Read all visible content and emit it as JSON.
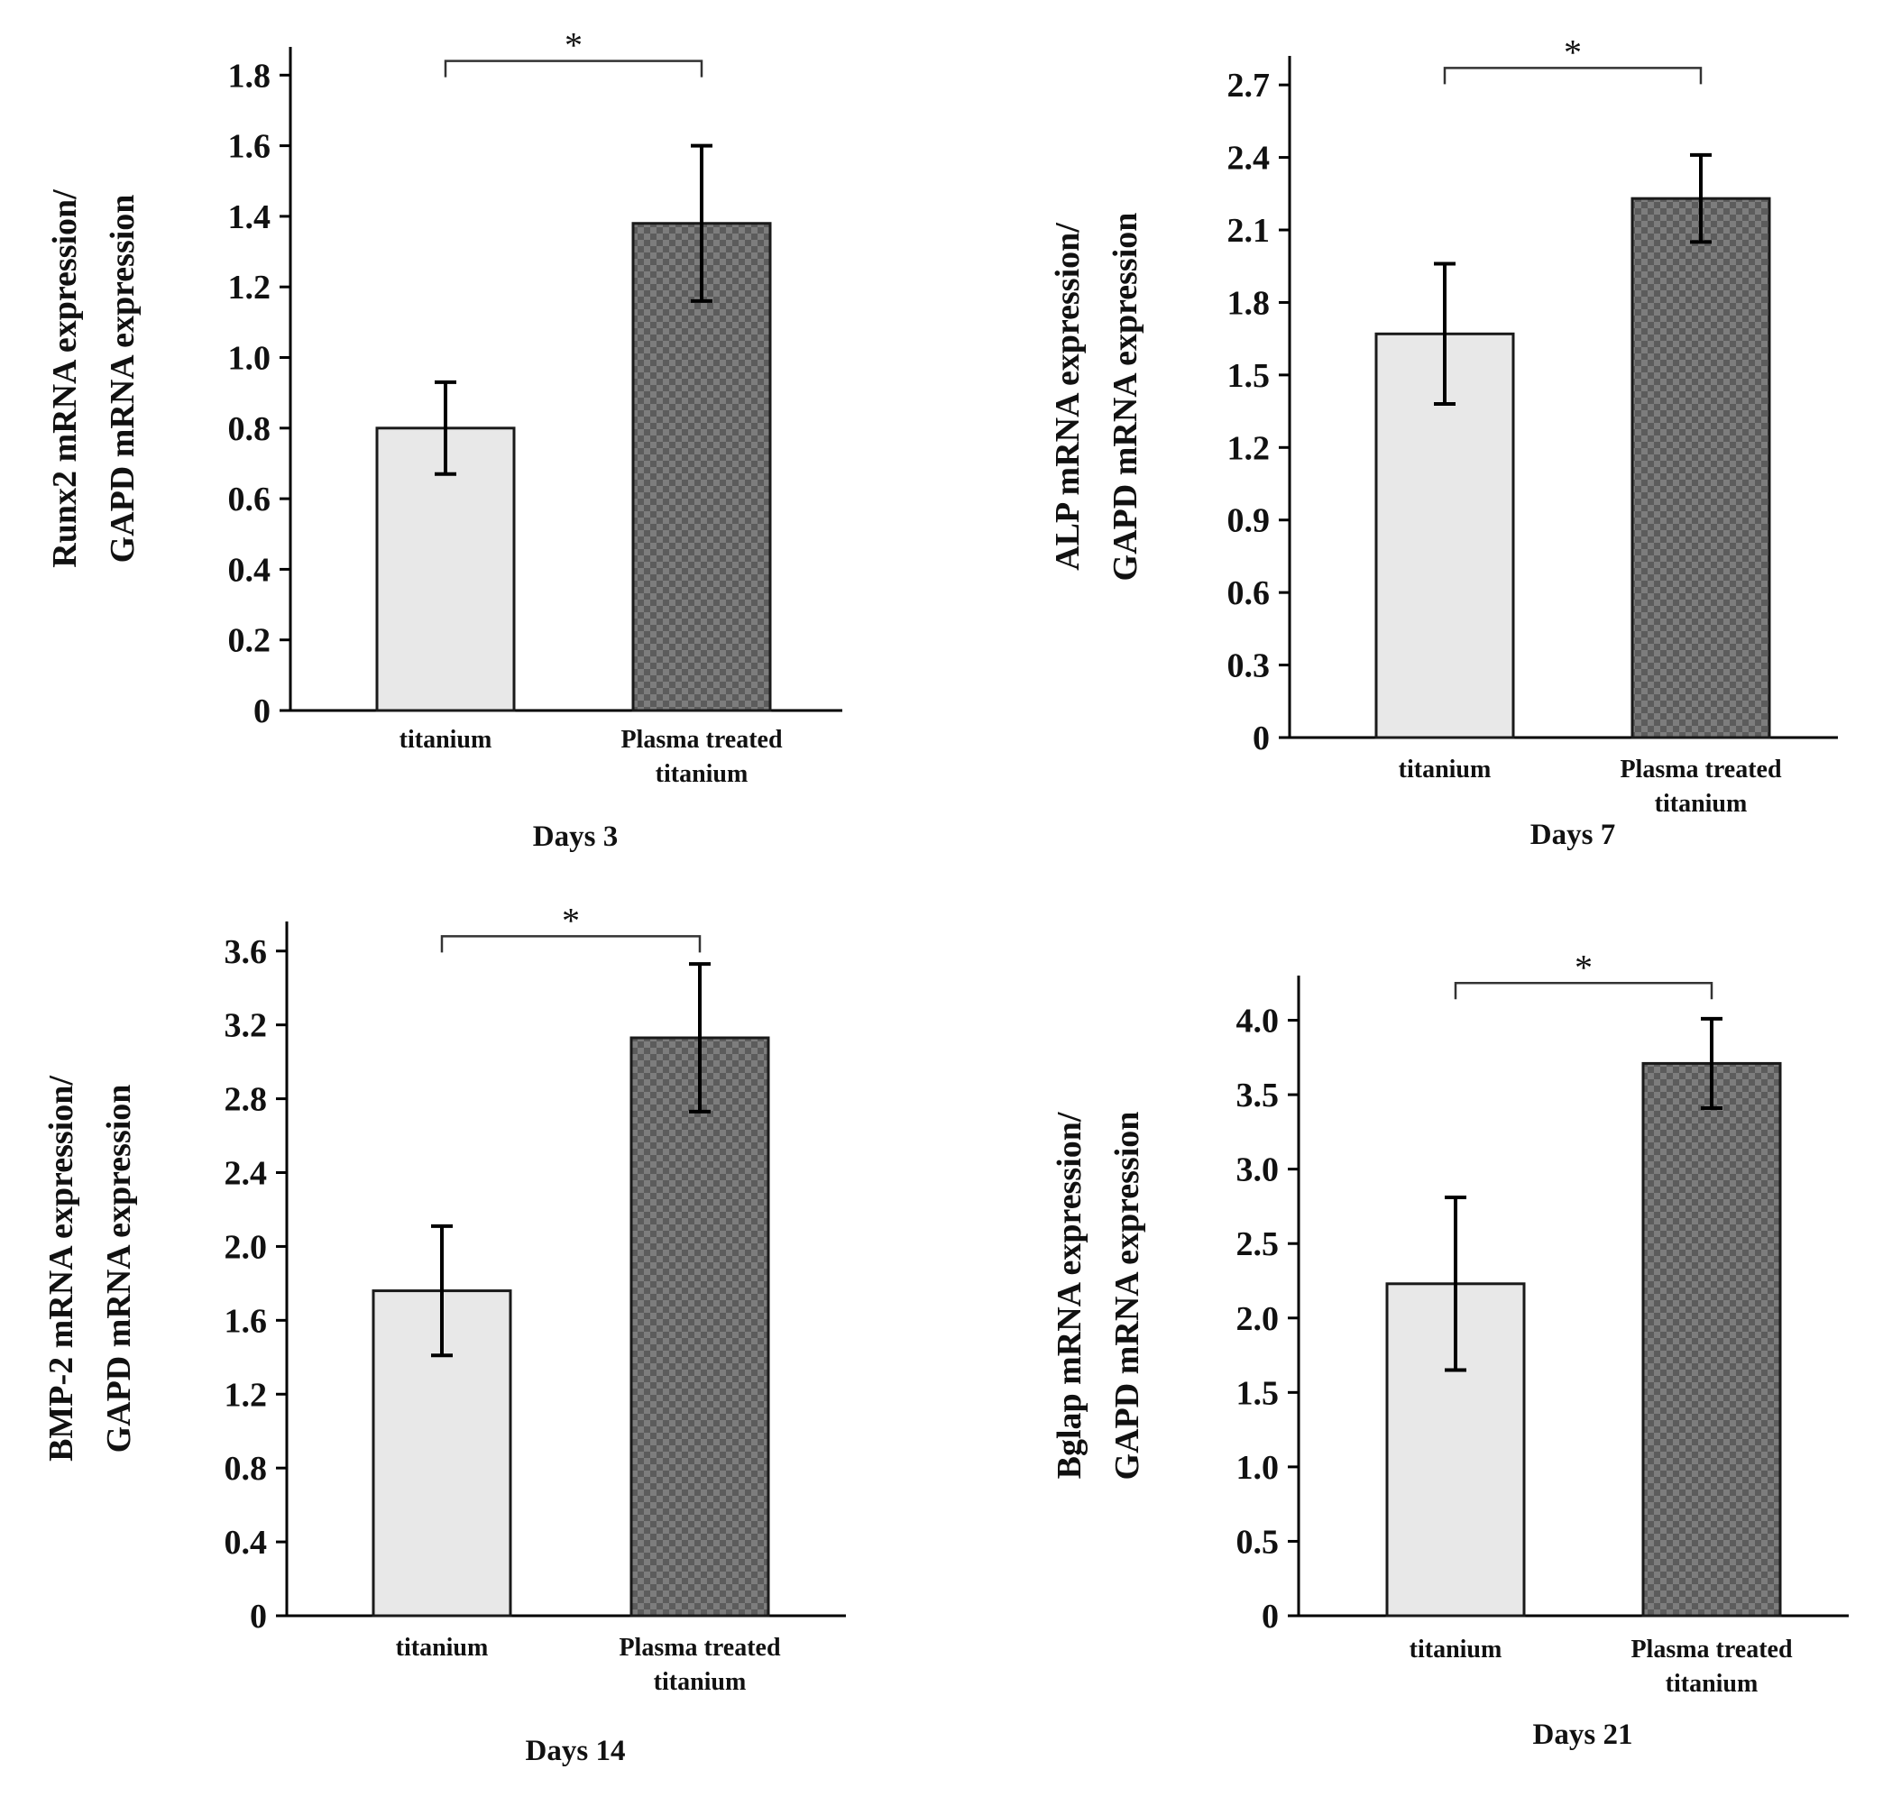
{
  "figure": {
    "colors": {
      "background": "#ffffff",
      "axis": "#000000",
      "bar_titanium": "#e8e8e8",
      "bar_plasma": "#7d7d7d",
      "bar_plasma_checker": "#5c5c5c",
      "bar_outline": "#1a1a1a"
    }
  },
  "chart_data": [
    {
      "type": "bar",
      "panel": "top-left",
      "title": "Days 3",
      "ylabel_lines": [
        "Runx2 mRNA expression/",
        "GAPD mRNA expression"
      ],
      "categories": [
        {
          "lines": [
            "titanium"
          ]
        },
        {
          "lines": [
            "Plasma treated",
            "titanium"
          ]
        }
      ],
      "values": [
        0.8,
        1.38
      ],
      "errors": [
        0.13,
        0.22
      ],
      "yticks": [
        0,
        0.2,
        0.4,
        0.6,
        0.8,
        1.0,
        1.2,
        1.4,
        1.6,
        1.8
      ],
      "ytick_labels": [
        "0",
        "0.2",
        "0.4",
        "0.6",
        "0.8",
        "1.0",
        "1.2",
        "1.4",
        "1.6",
        "1.8"
      ],
      "ylim": [
        0,
        1.88
      ],
      "significance": {
        "between": [
          0,
          1
        ],
        "label": "*",
        "level": 1.84
      },
      "grid": false
    },
    {
      "type": "bar",
      "panel": "top-right",
      "title": "Days 7",
      "ylabel_lines": [
        "ALP mRNA expression/",
        "GAPD mRNA expression"
      ],
      "categories": [
        {
          "lines": [
            "titanium"
          ]
        },
        {
          "lines": [
            "Plasma treated",
            "titanium"
          ]
        }
      ],
      "values": [
        1.67,
        2.23
      ],
      "errors": [
        0.29,
        0.18
      ],
      "yticks": [
        0,
        0.3,
        0.6,
        0.9,
        1.2,
        1.5,
        1.8,
        2.1,
        2.4,
        2.7
      ],
      "ytick_labels": [
        "0",
        "0.3",
        "0.6",
        "0.9",
        "1.2",
        "1.5",
        "1.8",
        "2.1",
        "2.4",
        "2.7"
      ],
      "ylim": [
        0,
        2.82
      ],
      "significance": {
        "between": [
          0,
          1
        ],
        "label": "*",
        "level": 2.77
      },
      "grid": false
    },
    {
      "type": "bar",
      "panel": "bottom-left",
      "title": "Days 14",
      "ylabel_lines": [
        "BMP-2 mRNA expression/",
        "GAPD mRNA expression"
      ],
      "categories": [
        {
          "lines": [
            "titanium"
          ]
        },
        {
          "lines": [
            "Plasma treated",
            "titanium"
          ]
        }
      ],
      "values": [
        1.76,
        3.13
      ],
      "errors": [
        0.35,
        0.4
      ],
      "yticks": [
        0,
        0.4,
        0.8,
        1.2,
        1.6,
        2.0,
        2.4,
        2.8,
        3.2,
        3.6
      ],
      "ytick_labels": [
        "0",
        "0.4",
        "0.8",
        "1.2",
        "1.6",
        "2.0",
        "2.4",
        "2.8",
        "3.2",
        "3.6"
      ],
      "ylim": [
        0,
        3.76
      ],
      "significance": {
        "between": [
          0,
          1
        ],
        "label": "*",
        "level": 3.68
      },
      "grid": false
    },
    {
      "type": "bar",
      "panel": "bottom-right",
      "title": "Days 21",
      "ylabel_lines": [
        "Bglap mRNA expression/",
        "GAPD mRNA expression"
      ],
      "categories": [
        {
          "lines": [
            "titanium"
          ]
        },
        {
          "lines": [
            "Plasma treated",
            "titanium"
          ]
        }
      ],
      "values": [
        2.23,
        3.71
      ],
      "errors": [
        0.58,
        0.3
      ],
      "yticks": [
        0,
        0.5,
        1.0,
        1.5,
        2.0,
        2.5,
        3.0,
        3.5,
        4.0
      ],
      "ytick_labels": [
        "0",
        "0.5",
        "1.0",
        "1.5",
        "2.0",
        "2.5",
        "3.0",
        "3.5",
        "4.0"
      ],
      "ylim": [
        0,
        4.3
      ],
      "significance": {
        "between": [
          0,
          1
        ],
        "label": "*",
        "level": 4.25
      },
      "grid": false
    }
  ]
}
